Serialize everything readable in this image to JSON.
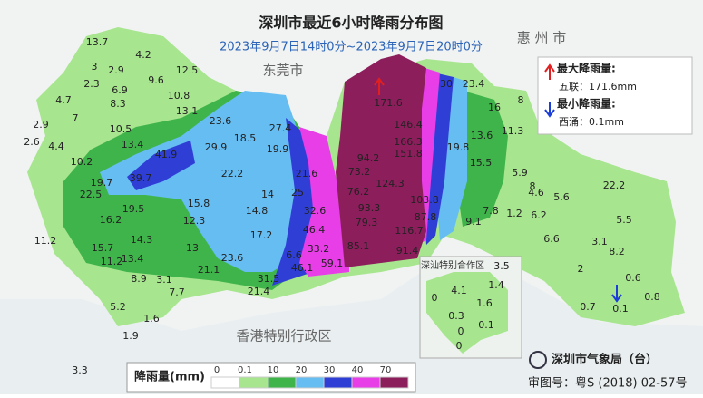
{
  "header": {
    "title": "深圳市最近6小时降雨分布图",
    "subtitle": "2023年9月7日14时0分~2023年9月7日20时0分"
  },
  "places": [
    "东莞市",
    "惠 州 市",
    "香港特别行政区"
  ],
  "extremes": {
    "max_label": "最大降雨量:",
    "max_value": "五联：171.6mm",
    "min_label": "最小降雨量:",
    "min_value": "西涌：0.1mm"
  },
  "inset_title": "深汕特别合作区",
  "legend": {
    "title": "降雨量(mm)",
    "ticks": [
      0,
      0.1,
      10,
      20,
      30,
      40,
      70
    ],
    "colors": [
      "#ffffff",
      "#a8e58f",
      "#3fb44a",
      "#66bdf2",
      "#2f3fd6",
      "#e83ee8",
      "#8c1e5c"
    ]
  },
  "stations": [
    "13.7",
    "4.2",
    "3",
    "2.9",
    "12.5",
    "9.6",
    "2.3",
    "6.9",
    "4.7",
    "10.8",
    "8.3",
    "7",
    "13.1",
    "2.9",
    "10.5",
    "23.6",
    "27.4",
    "2.6",
    "4.4",
    "13.4",
    "18.5",
    "29.9",
    "19.9",
    "41.9",
    "10.2",
    "21.6",
    "22.2",
    "39.7",
    "19.7",
    "25",
    "14",
    "22.5",
    "14.8",
    "32.6",
    "15.8",
    "19.5",
    "12.3",
    "16.2",
    "17.2",
    "46.4",
    "11.2",
    "14.3",
    "13",
    "15.7",
    "33.2",
    "6.6",
    "59.1",
    "23.6",
    "13.4",
    "11.2",
    "21.1",
    "46.1",
    "8.9",
    "31.5",
    "3.1",
    "7.7",
    "21.4",
    "5.2",
    "1.6",
    "1.9",
    "3.3",
    "171.6",
    "30",
    "23.4",
    "146.4",
    "166.3",
    "151.8",
    "94.2",
    "73.2",
    "124.3",
    "76.2",
    "103.8",
    "93.3",
    "87.8",
    "79.3",
    "116.7",
    "85.1",
    "91.4",
    "9.1",
    "7.8",
    "16",
    "8",
    "13.6",
    "11.3",
    "19.8",
    "15.5",
    "5.9",
    "8",
    "4.6",
    "5.6",
    "22.2",
    "6.2",
    "1.2",
    "5.5",
    "6.6",
    "3.1",
    "8.2",
    "2",
    "0.6",
    "0.8",
    "0.7",
    "0.1",
    "3.5",
    "1.4",
    "4.1",
    "1.6",
    "0",
    "0.3",
    "0.1",
    "0",
    "0"
  ],
  "footer": {
    "agency": "深圳市气象局（台）",
    "approval": "审图号：粤S (2018) 02-57号"
  }
}
